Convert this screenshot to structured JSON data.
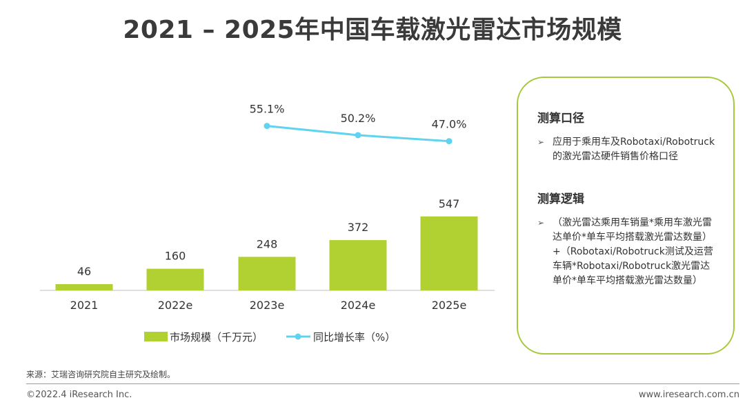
{
  "title": "2021 – 2025年中国车载激光雷达市场规模",
  "chart_data": {
    "type": "bar+line",
    "categories": [
      "2021",
      "2022e",
      "2023e",
      "2024e",
      "2025e"
    ],
    "series": [
      {
        "name": "市场规模（千万元）",
        "type": "bar",
        "values": [
          46,
          160,
          248,
          372,
          547
        ],
        "color": "#b1d132"
      },
      {
        "name": "同比增长率（%）",
        "type": "line",
        "values": [
          null,
          null,
          55.1,
          50.2,
          47.0
        ],
        "labels": [
          "",
          "",
          "55.1%",
          "50.2%",
          "47.0%"
        ],
        "color": "#5fd3ef"
      }
    ],
    "bar_ylim": [
      0,
      620
    ],
    "line_ylim": [
      0,
      60
    ],
    "legend_position": "bottom",
    "grid": false
  },
  "info": {
    "heading1": "测算口径",
    "item1": "应用于乘用车及Robotaxi/Robotruck的激光雷达硬件销售价格口径",
    "heading2": "测算逻辑",
    "item2": "（激光雷达乘用车销量*乘用车激光雷达单价*单车平均搭载激光雷达数量）+（Robotaxi/Robotruck测试及运营车辆*Robotaxi/Robotruck激光雷达单价*单车平均搭载激光雷达数量）",
    "bullet": "➢"
  },
  "footer": {
    "source": "来源：艾瑞咨询研究院自主研究及绘制。",
    "copyright": "©2022.4 iResearch Inc.",
    "website": "www.iresearch.com.cn"
  }
}
